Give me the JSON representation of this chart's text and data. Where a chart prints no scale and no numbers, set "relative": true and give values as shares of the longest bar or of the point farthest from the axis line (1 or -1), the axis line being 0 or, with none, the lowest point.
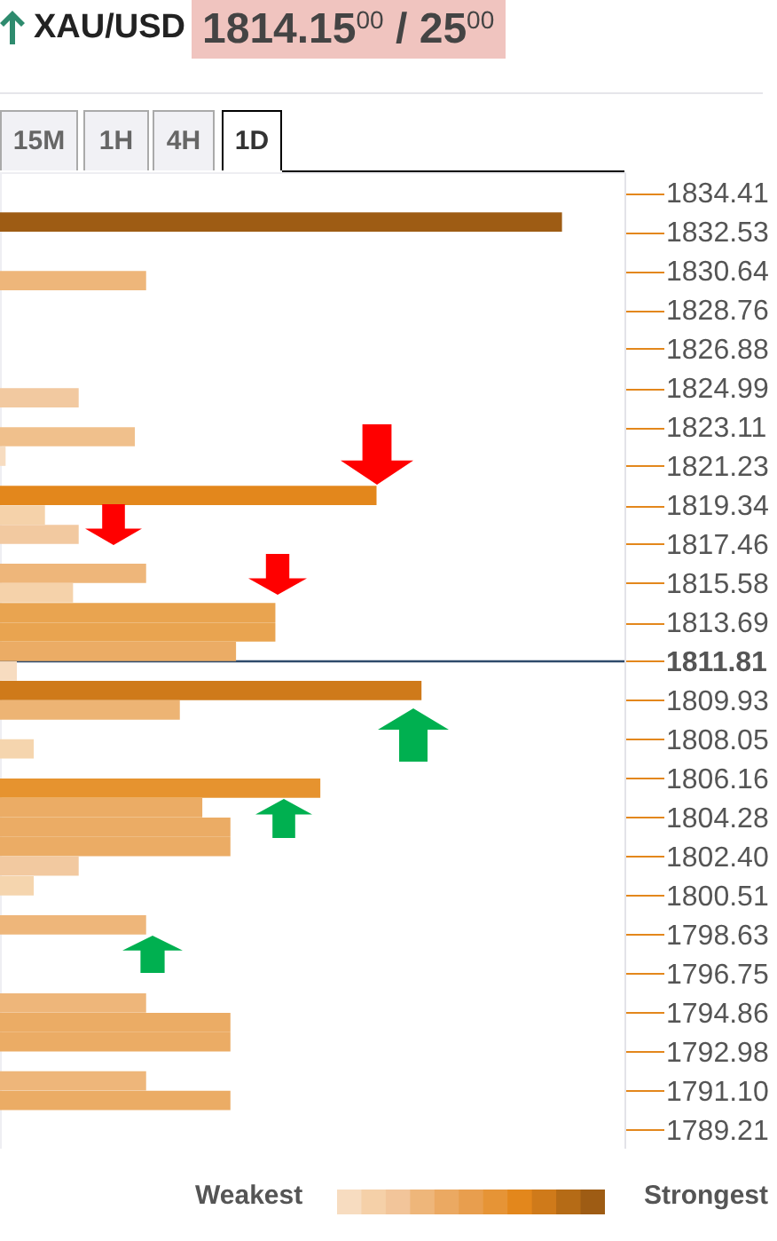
{
  "chart_data": {
    "type": "bar",
    "orientation": "horizontal",
    "relative": true,
    "title": "XAU/USD",
    "subtitle": "1814.15$^{00}$ / 25$^{00}$",
    "x": [
      1833.0,
      1832.06,
      1831.11,
      1830.17,
      1829.23,
      1828.29,
      1827.35,
      1826.41,
      1825.46,
      1824.52,
      1823.58,
      1822.64,
      1821.7,
      1820.76,
      1819.81,
      1818.87,
      1817.93,
      1816.99,
      1816.05,
      1815.11,
      1814.16,
      1813.22,
      1812.28,
      1811.34,
      1810.4,
      1809.46,
      1808.52,
      1807.58,
      1806.63,
      1805.69,
      1804.75,
      1803.81,
      1802.87,
      1801.93,
      1800.98,
      1800.04,
      1799.1,
      1798.16,
      1797.22,
      1796.28,
      1795.33,
      1794.39,
      1793.45,
      1792.51,
      1791.57,
      1790.63
    ],
    "values": [
      1.0,
      null,
      null,
      0.26,
      null,
      null,
      null,
      null,
      null,
      0.14,
      null,
      0.24,
      0.01,
      null,
      0.67,
      0.08,
      0.14,
      null,
      0.26,
      0.13,
      0.49,
      0.49,
      0.42,
      0.03,
      0.75,
      0.32,
      null,
      0.06,
      null,
      0.57,
      0.36,
      0.41,
      0.41,
      0.14,
      0.06,
      null,
      0.26,
      null,
      null,
      null,
      0.26,
      0.41,
      0.41,
      null,
      0.26,
      0.41
    ],
    "colors": [
      "#9e5c14",
      null,
      null,
      "#eeb67a",
      null,
      null,
      null,
      null,
      null,
      "#f2c9a0",
      null,
      "#f0c08c",
      "#f7dcc0",
      null,
      "#e3871c",
      "#f5d2aa",
      "#f2c9a0",
      null,
      "#eeb67a",
      "#f5d2aa",
      "#e9a450",
      "#e9a450",
      "#ebac65",
      "#f7dcc0",
      "#cf7a1a",
      "#edb474",
      null,
      "#f5d5ae",
      null,
      "#e6932f",
      "#ebac65",
      "#ebac65",
      "#ebac65",
      "#f2c9a0",
      "#f5d5ae",
      null,
      "#eeb67a",
      null,
      null,
      null,
      "#eeb67a",
      "#ebac65",
      "#ebac65",
      null,
      "#eeb67a",
      "#ebac65"
    ],
    "ylim": [
      1788.3,
      1835.4
    ],
    "yticks": [
      1834.41,
      1832.53,
      1830.64,
      1828.76,
      1826.88,
      1824.99,
      1823.11,
      1821.23,
      1819.34,
      1817.46,
      1815.58,
      1813.69,
      1811.81,
      1809.93,
      1808.05,
      1806.16,
      1804.28,
      {
        "value": 1802.4,
        "label": "1802.40"
      },
      1800.51,
      1798.63,
      1796.75,
      1794.86,
      1792.98,
      {
        "value": 1791.1,
        "label": "1791.10"
      },
      1789.21
    ],
    "ref_lines": [
      {
        "axis": "y",
        "value": 1811.81,
        "color": "#2e4a6b"
      }
    ],
    "annotations": [
      "15M",
      "1H",
      "4H",
      "1D",
      "Weakest",
      "Strongest"
    ]
  }
}
